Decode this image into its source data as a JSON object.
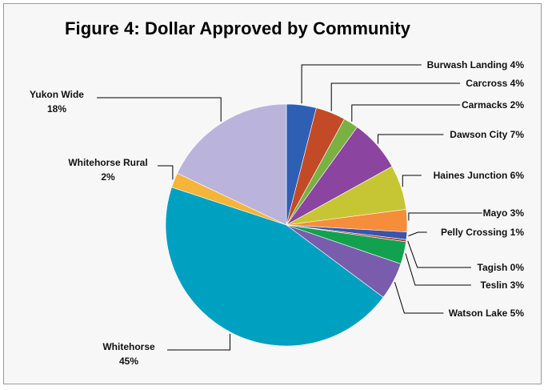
{
  "chart_data": {
    "type": "pie",
    "title": "Figure 4: Dollar Approved by Community",
    "slices": [
      {
        "label": "Burwash Landing 4%",
        "value": 4,
        "color": "#2e5fb5"
      },
      {
        "label": "Carcross 4%",
        "value": 4,
        "color": "#c24a27"
      },
      {
        "label": "Carmacks 2%",
        "value": 2,
        "color": "#7bb043"
      },
      {
        "label": "Dawson City 7%",
        "value": 7,
        "color": "#8b44a0"
      },
      {
        "label": "Haines Junction 6%",
        "value": 6,
        "color": "#c6c635"
      },
      {
        "label": "Mayo 3%",
        "value": 3,
        "color": "#f58d3a"
      },
      {
        "label": "Pelly Crossing 1%",
        "value": 1,
        "color": "#3656ad"
      },
      {
        "label": "Tagish 0%",
        "value": 0.3,
        "color": "#b23a2a"
      },
      {
        "label": "Teslin 3%",
        "value": 3,
        "color": "#12a24f"
      },
      {
        "label": "Watson Lake 5%",
        "value": 5,
        "color": "#7a5cac"
      },
      {
        "label": "Whitehorse 45%",
        "value": 45,
        "color": "#00a0c0"
      },
      {
        "label": "Whitehorse Rural 2%",
        "value": 2,
        "color": "#f5b43a"
      },
      {
        "label": "Yukon Wide 18%",
        "value": 18,
        "color": "#bab3db"
      }
    ]
  }
}
